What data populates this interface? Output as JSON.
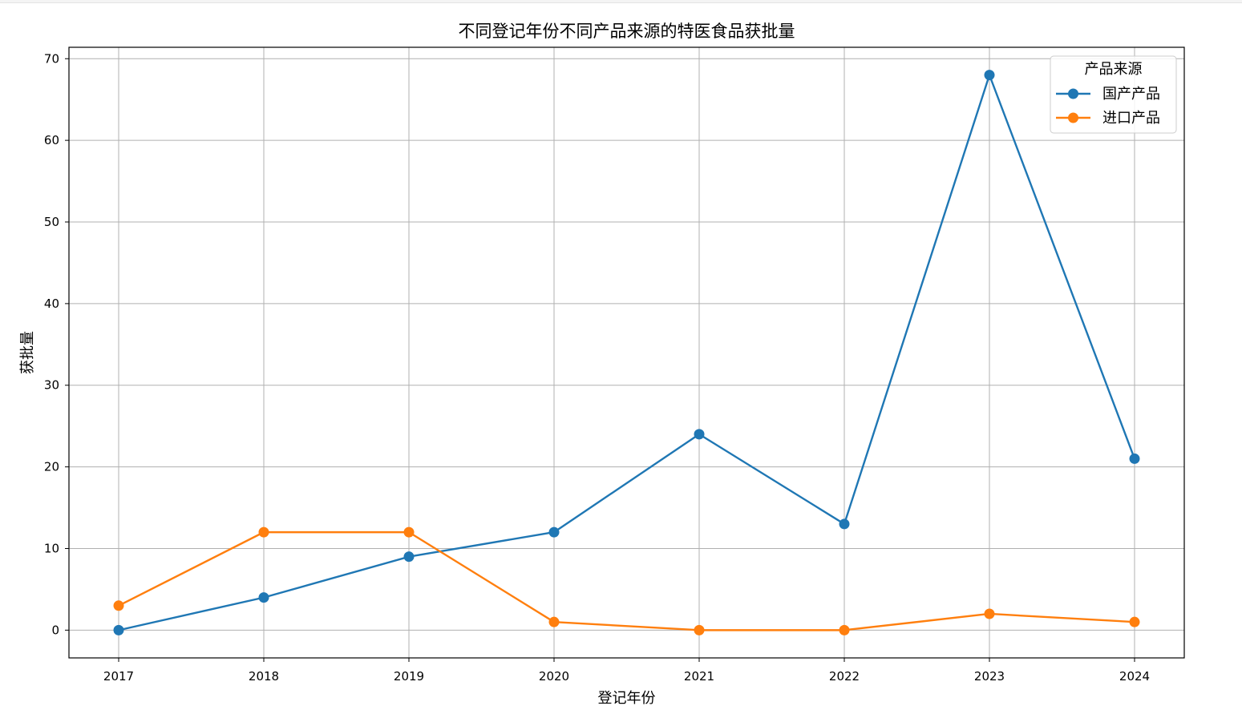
{
  "chart_data": {
    "type": "line",
    "title": "不同登记年份不同产品来源的特医食品获批量",
    "xlabel": "登记年份",
    "ylabel": "获批量",
    "x": [
      "2017",
      "2018",
      "2019",
      "2020",
      "2021",
      "2022",
      "2023",
      "2024"
    ],
    "ylim": [
      -3.4,
      71.4
    ],
    "yticks": [
      0,
      10,
      20,
      30,
      40,
      50,
      60,
      70
    ],
    "grid": true,
    "legend": {
      "title": "产品来源",
      "placement": "top-right"
    },
    "series": [
      {
        "name": "国产产品",
        "color": "#1f77b4",
        "values": [
          0,
          4,
          9,
          12,
          24,
          13,
          68,
          21
        ]
      },
      {
        "name": "进口产品",
        "color": "#ff7f0e",
        "values": [
          3,
          12,
          12,
          1,
          0,
          0,
          2,
          1
        ]
      }
    ]
  }
}
